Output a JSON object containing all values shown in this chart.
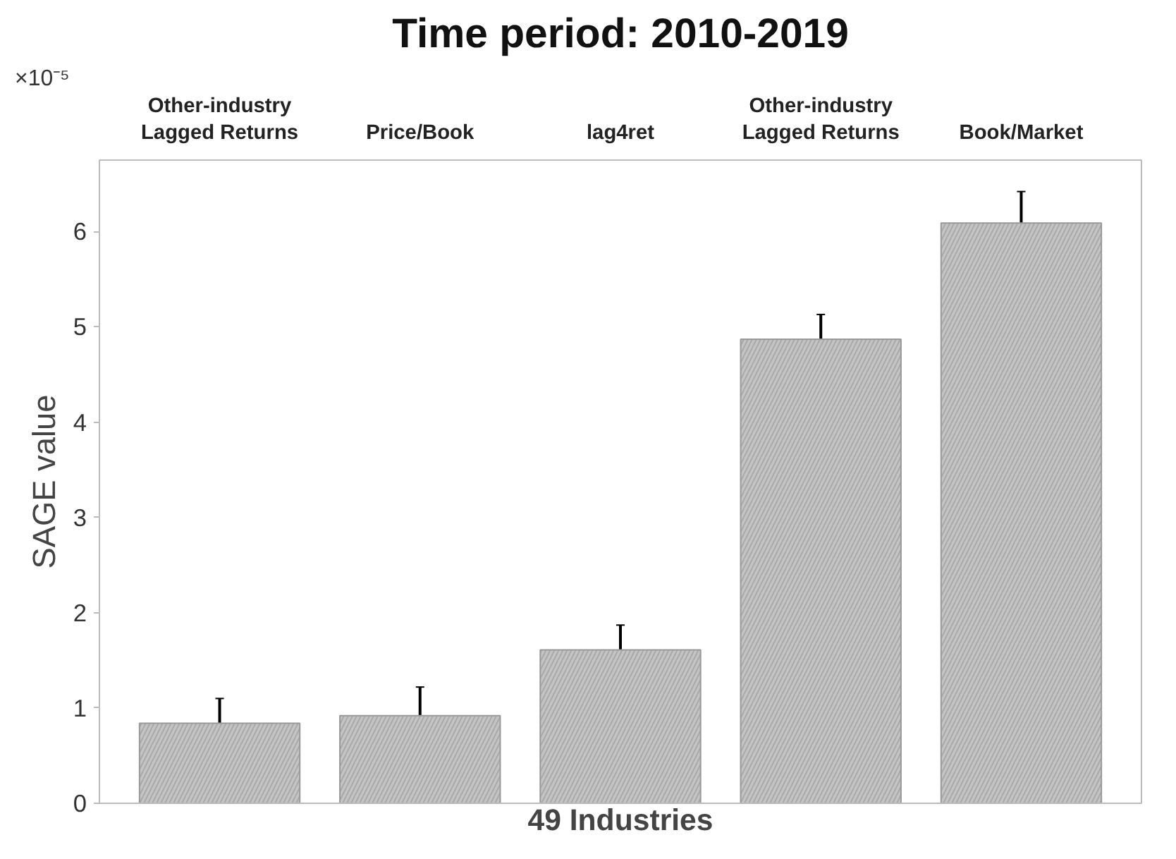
{
  "chart_data": {
    "type": "bar",
    "title": "Time period: 2010-2019",
    "xlabel": "49 Industries",
    "ylabel": "SAGE value",
    "categories": [
      "Other-industry\nLagged Returns",
      "Price/Book",
      "lag4ret",
      "Other-industry\nLagged Returns",
      "Book/Market"
    ],
    "values": [
      0.84,
      0.92,
      1.61,
      4.87,
      6.09
    ],
    "errors": [
      [
        0.58,
        1.1
      ],
      [
        0.63,
        1.22
      ],
      [
        1.35,
        1.87
      ],
      [
        4.62,
        5.13
      ],
      [
        5.76,
        6.42
      ]
    ],
    "color": "#c4c4c4",
    "ylim": [
      0,
      6.75
    ],
    "yticks": [
      0,
      1,
      2,
      3,
      4,
      5,
      6
    ],
    "annotations": [
      "×10⁻⁵"
    ],
    "grid": false
  }
}
